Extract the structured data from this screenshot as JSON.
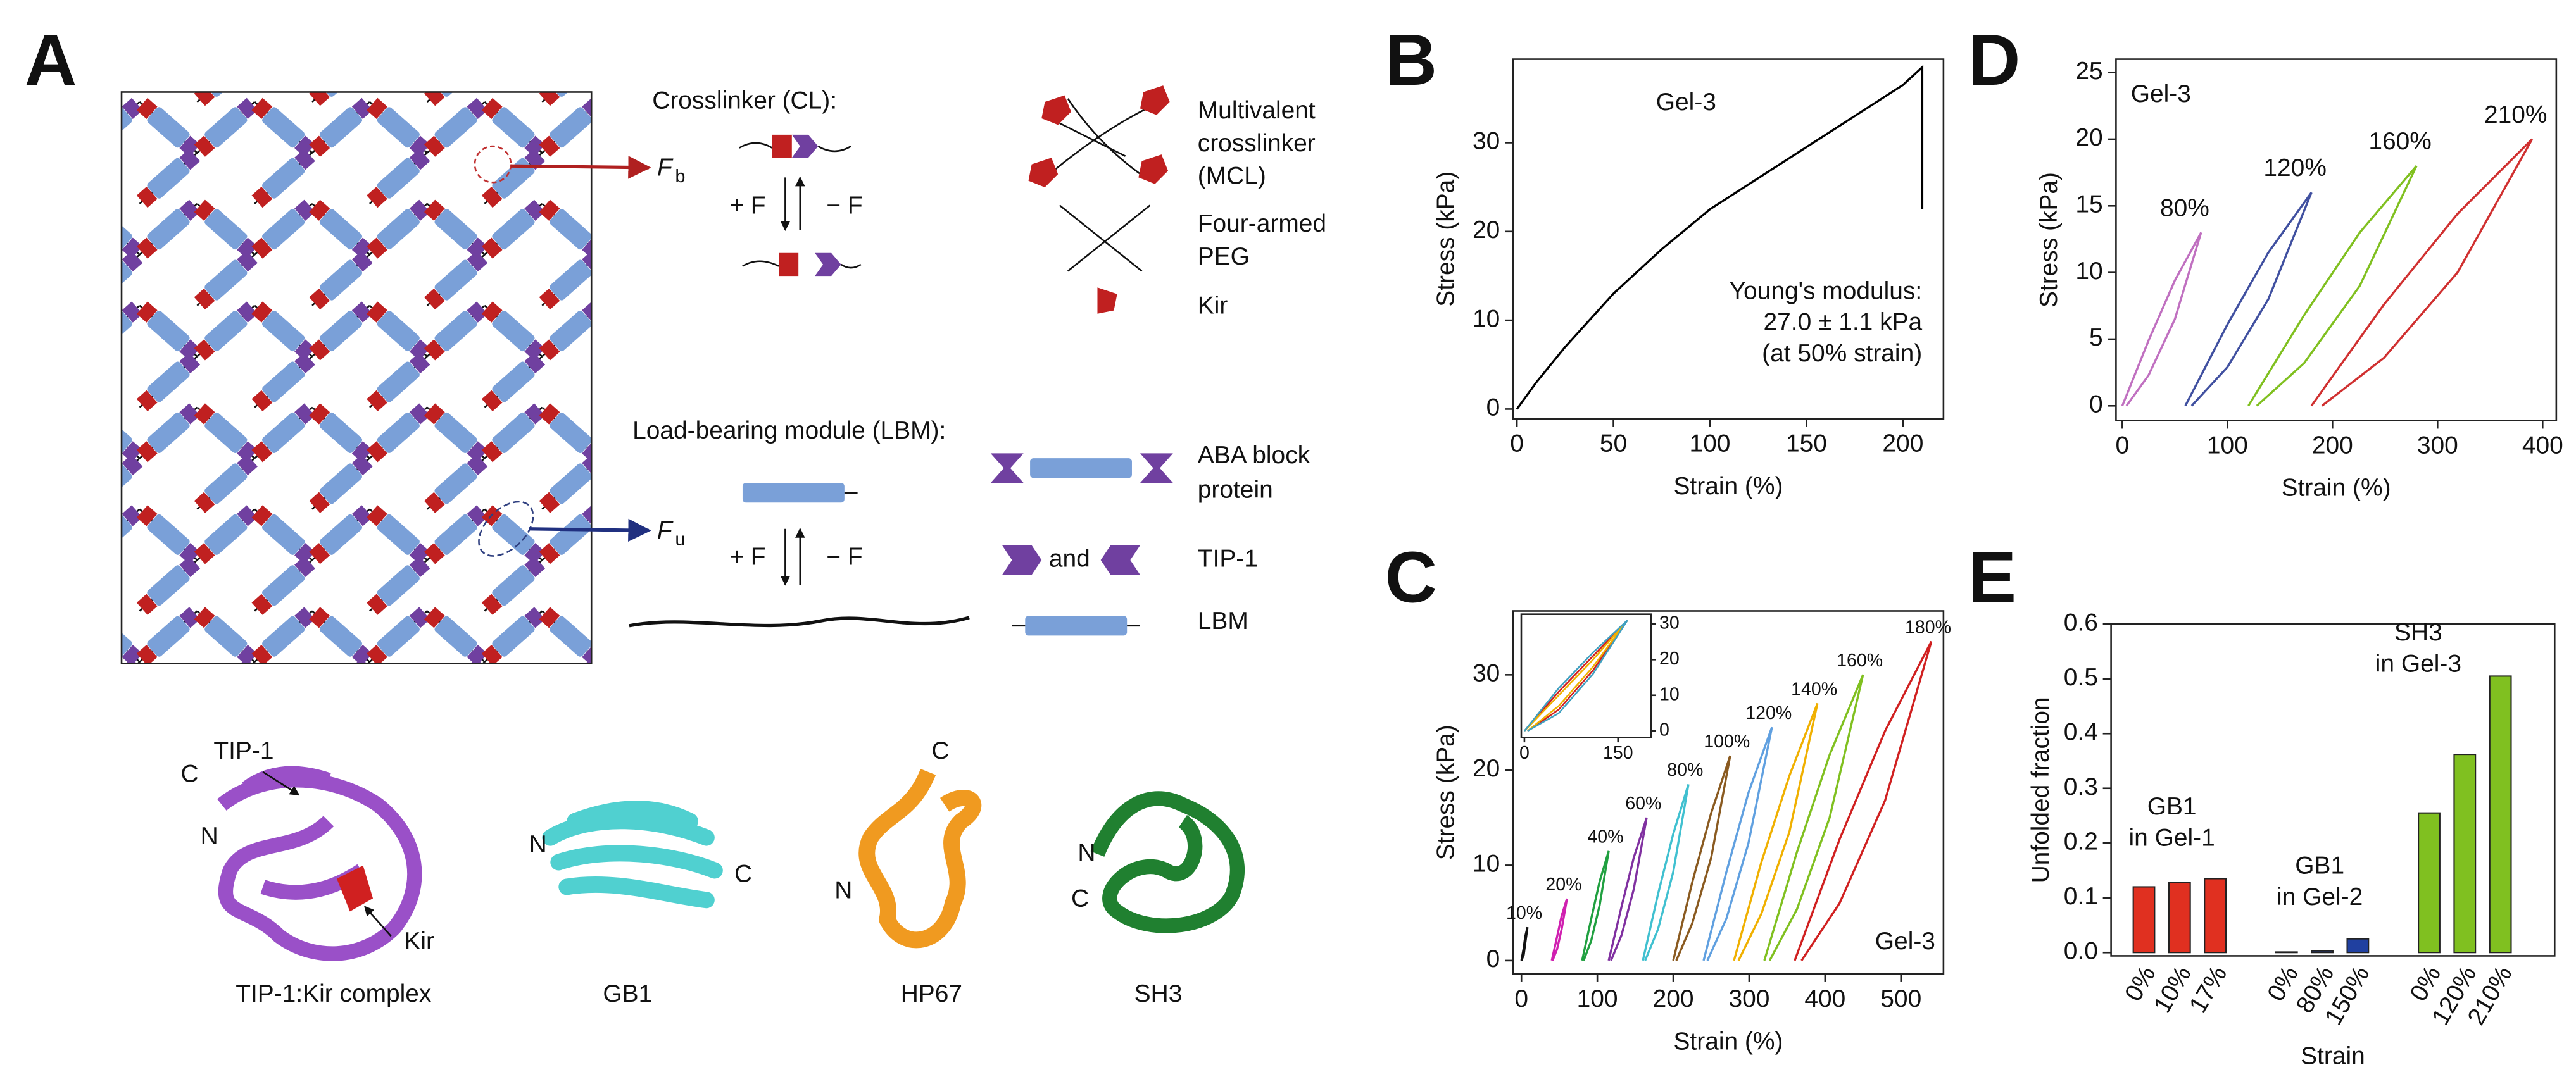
{
  "panel_labels": [
    "A",
    "B",
    "C",
    "D",
    "E"
  ],
  "diagram": {
    "crosslinker_title": "Crosslinker (CL):",
    "force_labels": [
      "+ F",
      "− F",
      "+ F",
      "− F"
    ],
    "mcl": [
      "Multivalent",
      "crosslinker",
      "(MCL)"
    ],
    "peg": [
      "Four-armed",
      "PEG"
    ],
    "kir": "Kir",
    "lbm_title": "Load-bearing module (LBM):",
    "aba": [
      "ABA block",
      "protein"
    ],
    "tip1": "TIP-1",
    "and": "and",
    "lbm": "LBM",
    "fb": {
      "symbol": "F",
      "sub": "b"
    },
    "fu": {
      "symbol": "F",
      "sub": "u"
    },
    "proteins": [
      {
        "name": "TIP-1:Kir complex",
        "labels": [
          "TIP-1",
          "C",
          "N",
          "Kir"
        ]
      },
      {
        "name": "GB1",
        "labels": [
          "N",
          "C"
        ]
      },
      {
        "name": "HP67",
        "labels": [
          "C",
          "N"
        ]
      },
      {
        "name": "SH3",
        "labels": [
          "N",
          "C"
        ]
      }
    ]
  },
  "chart_data": [
    {
      "type": "line",
      "xlabel": "Strain (%)",
      "ylabel": "Stress (kPa)",
      "annotations": [
        "Gel-3",
        "Young's modulus:",
        "27.0 ± 1.1 kPa",
        "(at 50% strain)"
      ],
      "xlim": [
        -2,
        221
      ],
      "ylim": [
        -1.1,
        39.4
      ],
      "xticks": [
        0,
        50,
        100,
        150,
        200
      ],
      "yticks": [
        0,
        10,
        20,
        30
      ],
      "series": [
        {
          "color": "#000000",
          "x": [
            0,
            10,
            25,
            50,
            75,
            100,
            125,
            150,
            175,
            200,
            210,
            210
          ],
          "values": [
            0,
            3,
            7,
            13,
            18,
            22.5,
            26,
            29.5,
            33,
            36.5,
            38.5,
            22.5
          ]
        }
      ]
    },
    {
      "type": "line",
      "xlabel": "Strain (%)",
      "ylabel": "Stress (kPa)",
      "annotations": [
        "Gel-3"
      ],
      "xlim": [
        -11,
        556
      ],
      "ylim": [
        -1.4,
        36.7
      ],
      "xticks": [
        0,
        100,
        200,
        300,
        400,
        500
      ],
      "yticks": [
        0,
        10,
        20,
        30
      ],
      "series": [
        {
          "name": "10%",
          "color": "#111111",
          "x": [
            0,
            3,
            5,
            8,
            5,
            3,
            0
          ],
          "values": [
            0,
            1.3,
            2.5,
            3.5,
            1.8,
            0.6,
            0
          ]
        },
        {
          "name": "20%",
          "color": "#d020b0",
          "x": [
            40,
            47,
            53,
            60,
            53,
            47,
            41
          ],
          "values": [
            0,
            2.5,
            4.7,
            6.5,
            3.3,
            1.2,
            0
          ]
        },
        {
          "name": "40%",
          "color": "#20a040",
          "x": [
            80,
            92,
            103,
            115,
            103,
            92,
            82
          ],
          "values": [
            0,
            4.4,
            8.3,
            11.5,
            5.8,
            2.1,
            0
          ]
        },
        {
          "name": "60%",
          "color": "#8030a0",
          "x": [
            115,
            132,
            148,
            165,
            148,
            132,
            118
          ],
          "values": [
            0,
            5.7,
            10.8,
            15,
            7.5,
            2.7,
            0
          ]
        },
        {
          "name": "80%",
          "color": "#40c0d0",
          "x": [
            160,
            180,
            200,
            220,
            200,
            180,
            163
          ],
          "values": [
            0,
            7,
            13.3,
            18.5,
            9.3,
            3.3,
            0
          ]
        },
        {
          "name": "100%",
          "color": "#8a5a20",
          "x": [
            200,
            225,
            250,
            275,
            250,
            225,
            204
          ],
          "values": [
            0,
            8.2,
            15.5,
            21.5,
            10.8,
            3.9,
            0
          ]
        },
        {
          "name": "120%",
          "color": "#60a0e0",
          "x": [
            240,
            270,
            299,
            330,
            299,
            270,
            245
          ],
          "values": [
            0,
            9.3,
            17.6,
            24.5,
            12.3,
            4.4,
            0
          ]
        },
        {
          "name": "140%",
          "color": "#f0b000",
          "x": [
            280,
            316,
            353,
            390,
            353,
            316,
            286
          ],
          "values": [
            0,
            10.3,
            19.4,
            27,
            13.5,
            4.9,
            0
          ]
        },
        {
          "name": "160%",
          "color": "#80c020",
          "x": [
            320,
            363,
            406,
            450,
            406,
            363,
            327
          ],
          "values": [
            0,
            11.4,
            21.6,
            30,
            15,
            5.4,
            0
          ]
        },
        {
          "name": "180%",
          "color": "#d02020",
          "x": [
            360,
            419,
            479,
            540,
            479,
            419,
            369
          ],
          "values": [
            0,
            12.7,
            24.1,
            33.5,
            16.8,
            6,
            0
          ]
        }
      ]
    },
    {
      "type": "line",
      "yaxis": "right",
      "xlim": [
        -5,
        203
      ],
      "ylim": [
        -1.8,
        32.7
      ],
      "xticks": [
        0,
        150
      ],
      "yticks": [
        0,
        10,
        20,
        30
      ],
      "series": [
        {
          "color": "#d02020",
          "x": [
            0,
            55,
            110,
            165,
            110,
            55,
            5
          ],
          "values": [
            0,
            11,
            21,
            31,
            17,
            6,
            0
          ]
        },
        {
          "color": "#f0b000",
          "x": [
            0,
            55,
            110,
            165,
            110,
            55,
            5
          ],
          "values": [
            0,
            10,
            20,
            31,
            18,
            7,
            0
          ]
        },
        {
          "color": "#40a0c0",
          "x": [
            0,
            55,
            110,
            165,
            110,
            55,
            5
          ],
          "values": [
            0,
            12,
            22,
            31,
            16,
            5,
            0
          ]
        }
      ]
    },
    {
      "type": "line",
      "xlabel": "Strain (%)",
      "ylabel": "Stress (kPa)",
      "annotations": [
        "Gel-3"
      ],
      "xlim": [
        -6,
        413
      ],
      "ylim": [
        -1.1,
        26
      ],
      "xticks": [
        0,
        100,
        200,
        300,
        400
      ],
      "yticks": [
        0,
        5,
        10,
        15,
        20,
        25
      ],
      "series": [
        {
          "name": "80%",
          "color": "#c070c0",
          "x": [
            0,
            25,
            50,
            75,
            50,
            25,
            4
          ],
          "values": [
            0,
            4.9,
            9.4,
            13,
            6.5,
            2.3,
            0
          ]
        },
        {
          "name": "120%",
          "color": "#4050a0",
          "x": [
            60,
            100,
            139,
            180,
            139,
            100,
            66
          ],
          "values": [
            0,
            6.1,
            11.5,
            16,
            8,
            2.9,
            0
          ]
        },
        {
          "name": "160%",
          "color": "#80c020",
          "x": [
            120,
            173,
            226,
            280,
            226,
            173,
            128
          ],
          "values": [
            0,
            6.8,
            13,
            18,
            9,
            3.2,
            0
          ]
        },
        {
          "name": "210%",
          "color": "#d03030",
          "x": [
            180,
            249,
            319,
            390,
            319,
            249,
            190
          ],
          "values": [
            0,
            7.6,
            14.4,
            20,
            10,
            3.6,
            0
          ]
        }
      ]
    },
    {
      "type": "bar",
      "xlabel": "Strain",
      "ylabel": "Unfolded fraction",
      "categories": [
        "0%",
        "10%",
        "17%",
        "0%",
        "80%",
        "150%",
        "0%",
        "120%",
        "210%"
      ],
      "values": [
        0.12,
        0.128,
        0.135,
        0.001,
        0.003,
        0.025,
        0.255,
        0.362,
        0.505
      ],
      "colors": [
        "#e03020",
        "#e03020",
        "#e03020",
        "#2040a0",
        "#2040a0",
        "#2040a0",
        "#80c020",
        "#80c020",
        "#80c020"
      ],
      "groups": [
        {
          "label": [
            "GB1",
            "in Gel-1"
          ]
        },
        {
          "label": [
            "GB1",
            "in Gel-2"
          ]
        },
        {
          "label": [
            "SH3",
            "in Gel-3"
          ]
        }
      ],
      "ylim": [
        -0.006,
        0.6
      ],
      "yticks": [
        {
          "value": 0,
          "label": "0.0"
        },
        0.1,
        0.2,
        0.3,
        0.4,
        0.5,
        0.6
      ]
    }
  ]
}
